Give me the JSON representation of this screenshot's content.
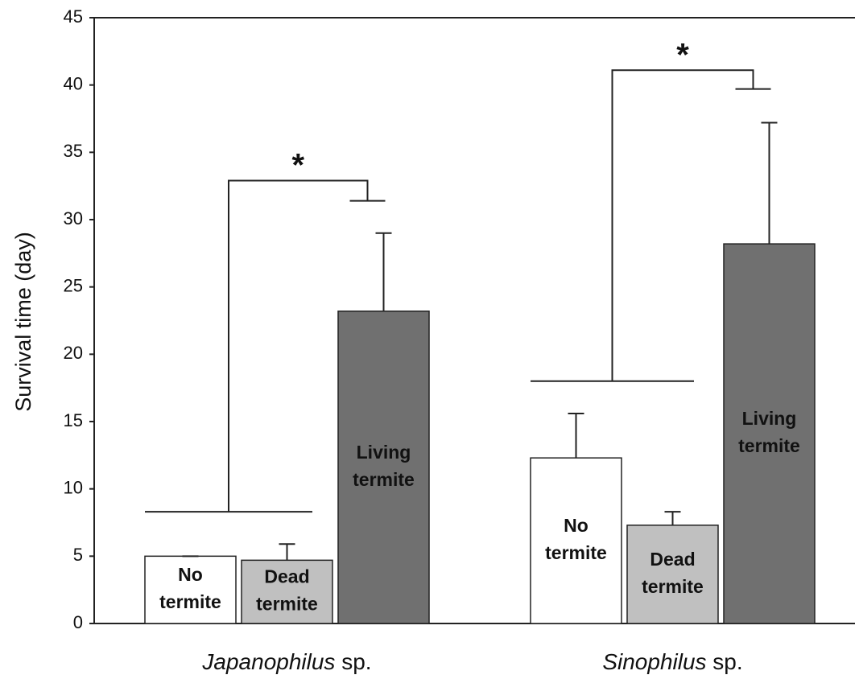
{
  "chart_data": {
    "type": "bar",
    "ylabel": "Survival time (day)",
    "categories": [
      "Japanophilus sp.",
      "Sinophilus sp."
    ],
    "series": [
      {
        "name": "No termite",
        "color": "#ffffff",
        "values": [
          5.0,
          12.3
        ],
        "errors": [
          0,
          3.3
        ]
      },
      {
        "name": "Dead termite",
        "color": "#c0c0c0",
        "values": [
          4.7,
          7.3
        ],
        "errors": [
          1.2,
          1.0
        ]
      },
      {
        "name": "Living termite",
        "color": "#707070",
        "values": [
          23.2,
          28.2
        ],
        "errors": [
          5.8,
          9.0
        ]
      }
    ],
    "brackets": [
      {
        "label": "*",
        "low": 8.3,
        "high": 32.9,
        "end": 31.4
      },
      {
        "label": "*",
        "low": 18.0,
        "high": 41.1,
        "end": 39.7
      }
    ],
    "ylim": [
      0,
      45
    ],
    "yticks": [
      0,
      5,
      10,
      15,
      20,
      25,
      30,
      35,
      40,
      45
    ]
  }
}
